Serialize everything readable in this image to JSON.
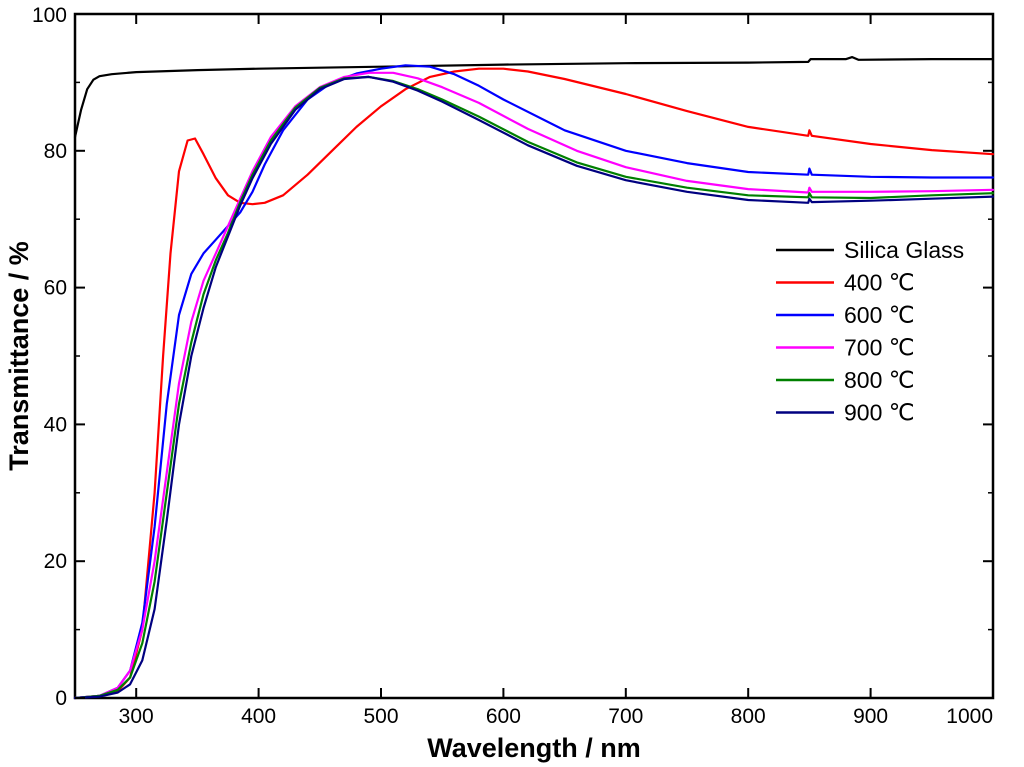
{
  "chart_data": {
    "type": "line",
    "title": "",
    "xlabel": "Wavelength / nm",
    "ylabel": "Transmittance / %",
    "xlim": [
      250,
      1000
    ],
    "ylim": [
      0,
      100
    ],
    "x_ticks": [
      300,
      400,
      500,
      600,
      700,
      800,
      900,
      1000
    ],
    "y_ticks": [
      0,
      20,
      40,
      60,
      80,
      100
    ],
    "grid": false,
    "legend_position": "right",
    "series": [
      {
        "name": "Silica Glass",
        "color": "#000000",
        "points": [
          [
            250,
            82
          ],
          [
            255,
            86
          ],
          [
            260,
            89
          ],
          [
            265,
            90.4
          ],
          [
            270,
            90.9
          ],
          [
            280,
            91.2
          ],
          [
            300,
            91.5
          ],
          [
            350,
            91.8
          ],
          [
            400,
            92
          ],
          [
            500,
            92.3
          ],
          [
            600,
            92.6
          ],
          [
            700,
            92.8
          ],
          [
            800,
            92.9
          ],
          [
            849,
            93
          ],
          [
            851,
            93.4
          ],
          [
            880,
            93.4
          ],
          [
            885,
            93.7
          ],
          [
            890,
            93.3
          ],
          [
            950,
            93.4
          ],
          [
            1000,
            93.4
          ]
        ]
      },
      {
        "name": "400 ℃",
        "color": "#ff0000",
        "points": [
          [
            250,
            0
          ],
          [
            270,
            0.3
          ],
          [
            285,
            1
          ],
          [
            295,
            3
          ],
          [
            305,
            10
          ],
          [
            315,
            30
          ],
          [
            322,
            50
          ],
          [
            328,
            65
          ],
          [
            335,
            77
          ],
          [
            342,
            81.5
          ],
          [
            348,
            81.8
          ],
          [
            355,
            79.5
          ],
          [
            365,
            76
          ],
          [
            375,
            73.5
          ],
          [
            385,
            72.4
          ],
          [
            395,
            72.2
          ],
          [
            405,
            72.4
          ],
          [
            420,
            73.5
          ],
          [
            440,
            76.5
          ],
          [
            460,
            80
          ],
          [
            480,
            83.5
          ],
          [
            500,
            86.5
          ],
          [
            520,
            89
          ],
          [
            540,
            90.8
          ],
          [
            560,
            91.6
          ],
          [
            580,
            92
          ],
          [
            600,
            92
          ],
          [
            620,
            91.6
          ],
          [
            650,
            90.5
          ],
          [
            700,
            88.3
          ],
          [
            750,
            85.8
          ],
          [
            800,
            83.5
          ],
          [
            849,
            82.2
          ],
          [
            850,
            83
          ],
          [
            852,
            82.2
          ],
          [
            900,
            81
          ],
          [
            950,
            80.1
          ],
          [
            1000,
            79.5
          ]
        ]
      },
      {
        "name": "600 ℃",
        "color": "#0000ff",
        "points": [
          [
            250,
            0
          ],
          [
            270,
            0.3
          ],
          [
            285,
            1.5
          ],
          [
            295,
            4
          ],
          [
            305,
            11
          ],
          [
            315,
            25
          ],
          [
            325,
            43
          ],
          [
            335,
            56
          ],
          [
            345,
            62
          ],
          [
            355,
            65
          ],
          [
            365,
            67
          ],
          [
            375,
            69
          ],
          [
            385,
            71
          ],
          [
            395,
            74
          ],
          [
            405,
            78
          ],
          [
            420,
            83
          ],
          [
            440,
            87.5
          ],
          [
            460,
            90
          ],
          [
            480,
            91.3
          ],
          [
            500,
            92
          ],
          [
            520,
            92.5
          ],
          [
            540,
            92.3
          ],
          [
            560,
            91.2
          ],
          [
            580,
            89.5
          ],
          [
            600,
            87.5
          ],
          [
            650,
            83
          ],
          [
            700,
            80
          ],
          [
            750,
            78.2
          ],
          [
            800,
            76.9
          ],
          [
            849,
            76.5
          ],
          [
            850,
            77.4
          ],
          [
            852,
            76.5
          ],
          [
            900,
            76.2
          ],
          [
            950,
            76.1
          ],
          [
            1000,
            76.1
          ]
        ]
      },
      {
        "name": "700 ℃",
        "color": "#ff00ff",
        "points": [
          [
            250,
            0
          ],
          [
            270,
            0.3
          ],
          [
            285,
            1.5
          ],
          [
            295,
            4
          ],
          [
            305,
            10
          ],
          [
            315,
            20
          ],
          [
            325,
            33
          ],
          [
            335,
            46
          ],
          [
            345,
            55
          ],
          [
            355,
            61
          ],
          [
            365,
            65
          ],
          [
            375,
            69
          ],
          [
            385,
            73
          ],
          [
            395,
            77
          ],
          [
            410,
            82
          ],
          [
            430,
            86.5
          ],
          [
            450,
            89.3
          ],
          [
            470,
            90.8
          ],
          [
            490,
            91.4
          ],
          [
            510,
            91.4
          ],
          [
            530,
            90.6
          ],
          [
            550,
            89.3
          ],
          [
            580,
            87
          ],
          [
            620,
            83.2
          ],
          [
            660,
            80
          ],
          [
            700,
            77.6
          ],
          [
            750,
            75.6
          ],
          [
            800,
            74.4
          ],
          [
            849,
            73.9
          ],
          [
            850,
            74.6
          ],
          [
            852,
            74
          ],
          [
            900,
            74
          ],
          [
            950,
            74.1
          ],
          [
            1000,
            74.3
          ]
        ]
      },
      {
        "name": "800 ℃",
        "color": "#008000",
        "points": [
          [
            250,
            0
          ],
          [
            270,
            0.3
          ],
          [
            285,
            1.2
          ],
          [
            295,
            3
          ],
          [
            305,
            8
          ],
          [
            315,
            17
          ],
          [
            325,
            30
          ],
          [
            335,
            43
          ],
          [
            345,
            52
          ],
          [
            355,
            59
          ],
          [
            365,
            64
          ],
          [
            375,
            68
          ],
          [
            385,
            72.5
          ],
          [
            395,
            76.5
          ],
          [
            410,
            81.5
          ],
          [
            430,
            86.3
          ],
          [
            450,
            89.2
          ],
          [
            470,
            90.6
          ],
          [
            490,
            90.8
          ],
          [
            510,
            90.2
          ],
          [
            530,
            89
          ],
          [
            550,
            87.5
          ],
          [
            580,
            85
          ],
          [
            620,
            81.3
          ],
          [
            660,
            78.3
          ],
          [
            700,
            76.2
          ],
          [
            750,
            74.6
          ],
          [
            800,
            73.5
          ],
          [
            849,
            73.2
          ],
          [
            850,
            73.8
          ],
          [
            852,
            73.2
          ],
          [
            900,
            73.1
          ],
          [
            950,
            73.5
          ],
          [
            1000,
            73.8
          ]
        ]
      },
      {
        "name": "900 ℃",
        "color": "#000080",
        "points": [
          [
            250,
            0
          ],
          [
            270,
            0.2
          ],
          [
            285,
            0.8
          ],
          [
            295,
            2
          ],
          [
            305,
            5.5
          ],
          [
            315,
            13
          ],
          [
            325,
            26
          ],
          [
            335,
            40
          ],
          [
            345,
            50
          ],
          [
            355,
            57
          ],
          [
            365,
            63
          ],
          [
            375,
            67.5
          ],
          [
            385,
            72
          ],
          [
            395,
            76
          ],
          [
            410,
            81
          ],
          [
            430,
            86
          ],
          [
            450,
            89
          ],
          [
            470,
            90.5
          ],
          [
            490,
            90.8
          ],
          [
            510,
            90.1
          ],
          [
            530,
            88.8
          ],
          [
            550,
            87.2
          ],
          [
            580,
            84.5
          ],
          [
            620,
            80.8
          ],
          [
            660,
            77.8
          ],
          [
            700,
            75.7
          ],
          [
            750,
            74
          ],
          [
            800,
            72.8
          ],
          [
            849,
            72.4
          ],
          [
            850,
            73
          ],
          [
            852,
            72.5
          ],
          [
            900,
            72.7
          ],
          [
            950,
            73
          ],
          [
            1000,
            73.3
          ]
        ]
      }
    ]
  }
}
